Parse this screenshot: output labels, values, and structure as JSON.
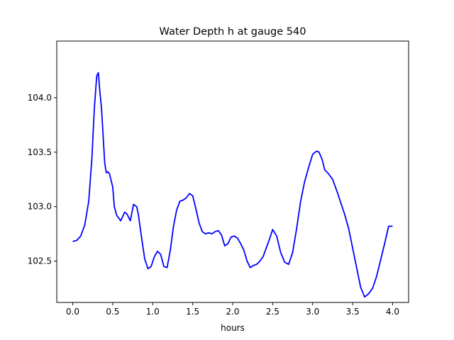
{
  "chart_data": {
    "type": "line",
    "title": "Water Depth h at gauge 540",
    "xlabel": "hours",
    "ylabel": "",
    "xlim": [
      -0.2,
      4.2
    ],
    "ylim": [
      102.12,
      104.52
    ],
    "xticks": [
      0.0,
      0.5,
      1.0,
      1.5,
      2.0,
      2.5,
      3.0,
      3.5,
      4.0
    ],
    "xtick_labels": [
      "0.0",
      "0.5",
      "1.0",
      "1.5",
      "2.0",
      "2.5",
      "3.0",
      "3.5",
      "4.0"
    ],
    "yticks": [
      102.5,
      103.0,
      103.5,
      104.0
    ],
    "ytick_labels": [
      "102.5",
      "103.0",
      "103.5",
      "104.0"
    ],
    "grid": false,
    "line_color": "#0000ff",
    "series": [
      {
        "x": [
          0.0,
          0.05,
          0.1,
          0.15,
          0.2,
          0.24,
          0.27,
          0.3,
          0.32,
          0.34,
          0.36,
          0.38,
          0.4,
          0.42,
          0.44,
          0.46,
          0.5,
          0.52,
          0.55,
          0.6,
          0.65,
          0.68,
          0.72,
          0.76,
          0.8,
          0.82,
          0.86,
          0.9,
          0.94,
          0.98,
          1.02,
          1.06,
          1.1,
          1.14,
          1.18,
          1.22,
          1.26,
          1.3,
          1.34,
          1.38,
          1.42,
          1.46,
          1.5,
          1.54,
          1.58,
          1.62,
          1.66,
          1.7,
          1.74,
          1.78,
          1.82,
          1.86,
          1.9,
          1.94,
          1.98,
          2.02,
          2.06,
          2.1,
          2.14,
          2.18,
          2.22,
          2.26,
          2.3,
          2.34,
          2.38,
          2.42,
          2.46,
          2.5,
          2.55,
          2.6,
          2.65,
          2.7,
          2.75,
          2.8,
          2.85,
          2.9,
          2.95,
          3.0,
          3.05,
          3.08,
          3.12,
          3.15,
          3.2,
          3.25,
          3.3,
          3.35,
          3.4,
          3.45,
          3.5,
          3.55,
          3.6,
          3.65,
          3.7,
          3.75,
          3.8,
          3.85,
          3.9,
          3.95,
          4.0
        ],
        "values": [
          102.68,
          102.69,
          102.73,
          102.83,
          103.05,
          103.45,
          103.9,
          104.2,
          104.23,
          104.05,
          103.9,
          103.65,
          103.4,
          103.31,
          103.32,
          103.3,
          103.18,
          103.0,
          102.92,
          102.87,
          102.95,
          102.93,
          102.87,
          103.02,
          103.0,
          102.93,
          102.72,
          102.52,
          102.43,
          102.45,
          102.54,
          102.59,
          102.56,
          102.45,
          102.44,
          102.6,
          102.82,
          102.97,
          103.05,
          103.06,
          103.08,
          103.12,
          103.1,
          102.98,
          102.85,
          102.77,
          102.75,
          102.76,
          102.75,
          102.77,
          102.78,
          102.74,
          102.64,
          102.66,
          102.72,
          102.73,
          102.71,
          102.66,
          102.6,
          102.5,
          102.44,
          102.46,
          102.47,
          102.5,
          102.54,
          102.62,
          102.7,
          102.79,
          102.73,
          102.58,
          102.49,
          102.47,
          102.58,
          102.8,
          103.05,
          103.23,
          103.36,
          103.48,
          103.51,
          103.5,
          103.43,
          103.34,
          103.3,
          103.25,
          103.15,
          103.04,
          102.93,
          102.8,
          102.62,
          102.44,
          102.26,
          102.17,
          102.2,
          102.25,
          102.36,
          102.51,
          102.66,
          102.82,
          102.82
        ]
      }
    ]
  }
}
